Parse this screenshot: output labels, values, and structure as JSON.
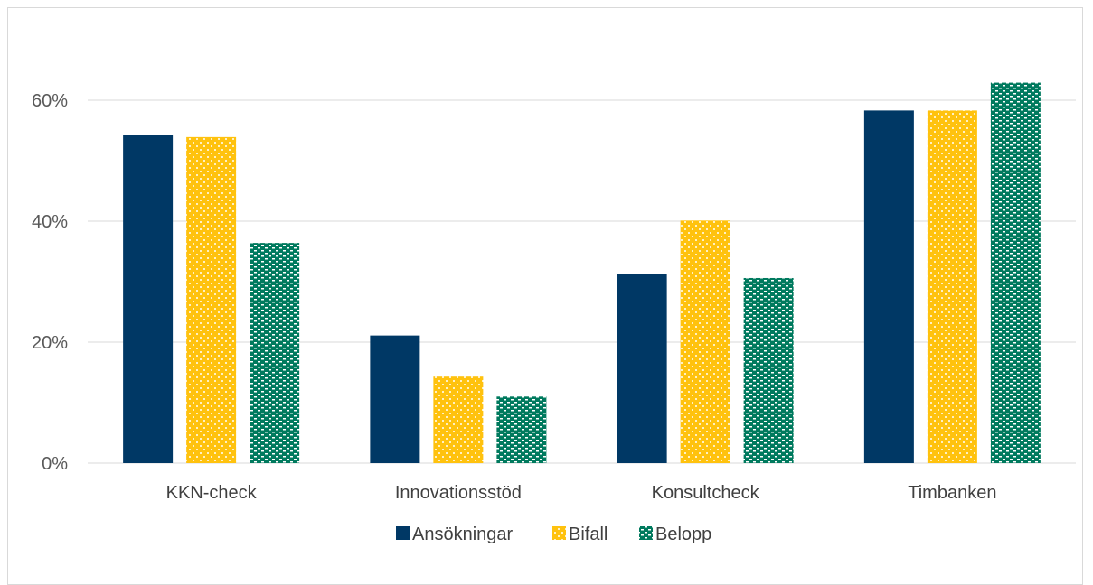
{
  "chart_data": {
    "type": "bar",
    "categories": [
      "KKN-check",
      "Innovationsstöd",
      "Konsultcheck",
      "Timbanken"
    ],
    "series": [
      {
        "name": "Ansökningar",
        "values": [
          54.2,
          21.1,
          31.3,
          58.3
        ]
      },
      {
        "name": "Bifall",
        "values": [
          53.9,
          14.3,
          40.1,
          58.3
        ]
      },
      {
        "name": "Belopp",
        "values": [
          36.4,
          11.0,
          30.6,
          62.9
        ]
      }
    ],
    "yticks": [
      "0%",
      "20%",
      "40%",
      "60%"
    ],
    "ytick_values": [
      0,
      20,
      40,
      60
    ],
    "ylim": [
      0,
      70
    ],
    "grid": true,
    "legend_position": "bottom",
    "colors": {
      "Ansökningar": "#003865",
      "Bifall": "#ffc20e",
      "Belopp": "#007a5e",
      "grid": "#d9d9d9",
      "axis_text": "#595959"
    }
  }
}
